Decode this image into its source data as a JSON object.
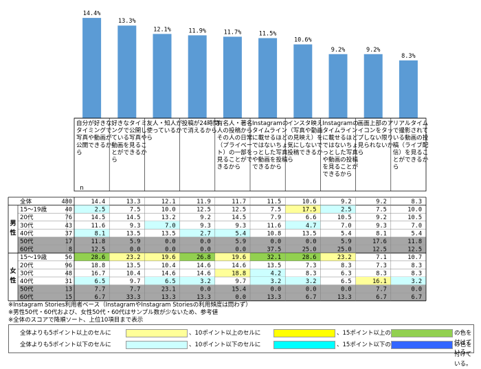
{
  "chart_data": {
    "type": "bar",
    "categories": [
      "自分が好きなタイミングで写真や動画が公開できるから",
      "好きなタイミングで公開している写真や動画を見ることができるから",
      "友人・知人が使っているから",
      "投稿が24時間で消えるから",
      "有名人・著名人の投稿からその人の日常（プライベート）の一部を見ることができるから",
      "Instagramのタイムラインに載せるほどではないちょっとした写真や動画を投稿できるから",
      "インスタ映え（写真や動画の見映え）を気にしないで投稿できるから",
      "Instagramのタイムラインに載せるほどではないちょっとした写真や動画の投稿を見ることができるから",
      "画面上部のアイコンをタップしない限り見られないから",
      "リアルタイムで撮影されている動画の投稿（ライブ配信）を見ることができるから"
    ],
    "values": [
      14.4,
      13.3,
      12.1,
      11.9,
      11.7,
      11.5,
      10.6,
      9.2,
      9.2,
      8.3
    ],
    "value_labels": [
      "14.4%",
      "13.3%",
      "12.1%",
      "11.9%",
      "11.7%",
      "11.5%",
      "10.6%",
      "9.2%",
      "9.2%",
      "8.3%"
    ],
    "bar_color": "#5b9bd5",
    "ylim": [
      0,
      15
    ],
    "table": {
      "n_header": "n",
      "total": {
        "label": "全体",
        "n": "480",
        "values": [
          "14.4",
          "13.3",
          "12.1",
          "11.9",
          "11.7",
          "11.5",
          "10.6",
          "9.2",
          "9.2",
          "8.3"
        ]
      },
      "groups": [
        {
          "label": "男性",
          "rows": [
            {
              "label": "15～19歳",
              "n": "40",
              "values": [
                "2.5",
                "7.5",
                "10.0",
                "12.5",
                "12.5",
                "7.5",
                "17.5",
                "2.5",
                "7.5",
                "10.0"
              ],
              "colors": [
                "c",
                "",
                "",
                "",
                "",
                "",
                "y",
                "c",
                "",
                ""
              ]
            },
            {
              "label": "20代",
              "n": "76",
              "values": [
                "14.5",
                "14.5",
                "13.2",
                "9.2",
                "14.5",
                "7.9",
                "6.6",
                "10.5",
                "9.2",
                "10.5"
              ],
              "colors": [
                "",
                "",
                "",
                "",
                "",
                "",
                "",
                "",
                "",
                ""
              ]
            },
            {
              "label": "30代",
              "n": "43",
              "values": [
                "11.6",
                "9.3",
                "7.0",
                "9.3",
                "9.3",
                "11.6",
                "4.7",
                "7.0",
                "9.3",
                "7.0"
              ],
              "colors": [
                "",
                "",
                "c",
                "",
                "",
                "",
                "c",
                "",
                "",
                ""
              ]
            },
            {
              "label": "40代",
              "n": "37",
              "values": [
                "8.1",
                "13.5",
                "13.5",
                "2.7",
                "5.4",
                "10.8",
                "13.5",
                "5.4",
                "8.1",
                "5.4"
              ],
              "colors": [
                "c",
                "",
                "",
                "c",
                "c",
                "",
                "",
                "",
                "",
                ""
              ]
            },
            {
              "label": "50代",
              "n": "17",
              "values": [
                "11.8",
                "5.9",
                "0.0",
                "0.0",
                "5.9",
                "0.0",
                "0.0",
                "5.9",
                "17.6",
                "11.8"
              ],
              "colors": [
                "g",
                "g",
                "g",
                "g",
                "g",
                "g",
                "g",
                "g",
                "g",
                "g"
              ]
            },
            {
              "label": "60代",
              "n": "8",
              "values": [
                "12.5",
                "0.0",
                "0.0",
                "0.0",
                "0.0",
                "37.5",
                "25.0",
                "25.0",
                "12.5",
                "12.5"
              ],
              "colors": [
                "g",
                "g",
                "g",
                "g",
                "g",
                "g",
                "g",
                "g",
                "g",
                "g"
              ]
            }
          ]
        },
        {
          "label": "女性",
          "rows": [
            {
              "label": "15～19歳",
              "n": "56",
              "values": [
                "28.6",
                "23.2",
                "19.6",
                "26.8",
                "19.6",
                "32.1",
                "28.6",
                "23.2",
                "7.1",
                "10.7"
              ],
              "colors": [
                "g15",
                "y",
                "y",
                "g15",
                "y",
                "g15",
                "g15",
                "y",
                "",
                ""
              ]
            },
            {
              "label": "20代",
              "n": "96",
              "values": [
                "18.8",
                "13.5",
                "10.4",
                "14.6",
                "14.6",
                "13.5",
                "7.3",
                "8.3",
                "7.3",
                "8.3"
              ],
              "colors": [
                "",
                "",
                "",
                "",
                "",
                "",
                "",
                "",
                "",
                ""
              ]
            },
            {
              "label": "30代",
              "n": "48",
              "values": [
                "16.7",
                "10.4",
                "14.6",
                "14.6",
                "18.8",
                "4.2",
                "8.3",
                "6.3",
                "8.3",
                "8.3"
              ],
              "colors": [
                "",
                "",
                "",
                "",
                "y",
                "c",
                "",
                "",
                "",
                ""
              ]
            },
            {
              "label": "40代",
              "n": "31",
              "values": [
                "6.5",
                "9.7",
                "6.5",
                "3.2",
                "9.7",
                "3.2",
                "3.2",
                "6.5",
                "16.1",
                "3.2"
              ],
              "colors": [
                "c",
                "",
                "c",
                "c",
                "",
                "c",
                "c",
                "",
                "y",
                "c"
              ]
            },
            {
              "label": "50代",
              "n": "13",
              "values": [
                "7.7",
                "7.7",
                "23.1",
                "0.0",
                "15.4",
                "0.0",
                "0.0",
                "0.0",
                "7.7",
                "0.0"
              ],
              "colors": [
                "g",
                "g",
                "g",
                "g",
                "g",
                "g",
                "g",
                "g",
                "g",
                "g"
              ]
            },
            {
              "label": "60代",
              "n": "15",
              "values": [
                "6.7",
                "33.3",
                "13.3",
                "13.3",
                "0.0",
                "13.3",
                "6.7",
                "13.3",
                "6.7",
                "6.7"
              ],
              "colors": [
                "g",
                "g",
                "g",
                "g",
                "g",
                "g",
                "g",
                "g",
                "g",
                "g"
              ]
            }
          ]
        }
      ]
    }
  },
  "notes": [
    "※Instagram Stories利用者ベース（InstagramやInstagram Storiesの利用頻度は問わず）",
    "※男性50代・60代および、女性50代・60代はサンプル数が少ないため、参考値",
    "※全体のスコアで降順ソート、上位10項目まで表示"
  ],
  "legend": {
    "rows": [
      {
        "prefix": "全体よりも5ポイント以上のセルに",
        "t1": "、10ポイント以上のセルに",
        "t2": "、15ポイント以上のセルに",
        "t3": "の色を付けている。",
        "colors": [
          "#ffff99",
          "#ffff00",
          "#92d050"
        ]
      },
      {
        "prefix": "全体よりも5ポイント以下のセルに",
        "t1": "、10ポイント以下のセルに",
        "t2": "、15ポイント以下のセルに",
        "t3": "の色を付けている。",
        "colors": [
          "#ccffff",
          "#00ffff",
          "#3366ff"
        ]
      }
    ]
  },
  "colors": {
    "c": "#ccffff",
    "y": "#ffff99",
    "g15": "#92d050",
    "g": "#a6a6a6",
    "grid": "#808080"
  }
}
